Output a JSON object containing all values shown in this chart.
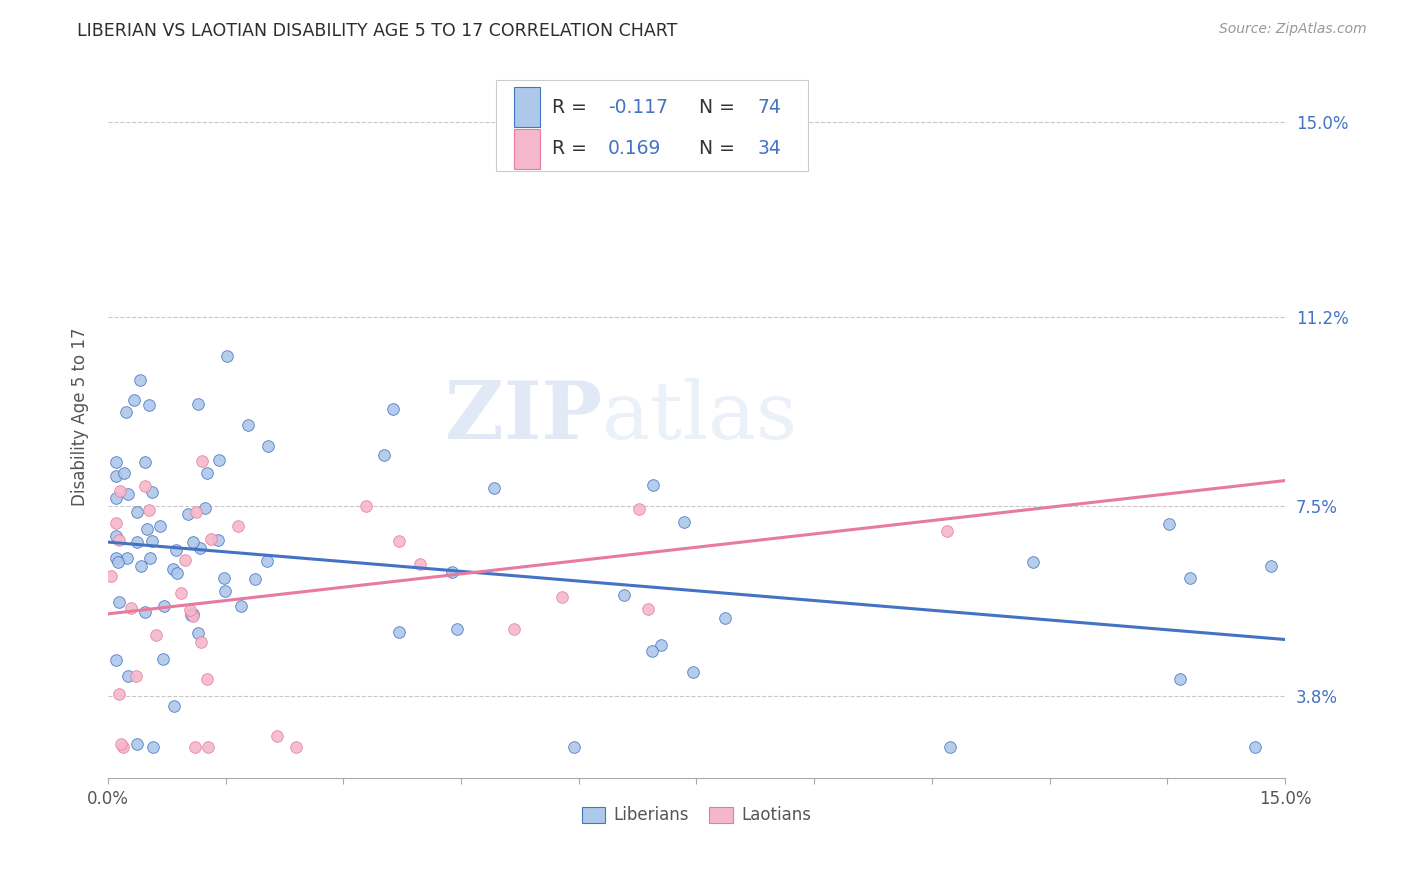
{
  "title": "LIBERIAN VS LAOTIAN DISABILITY AGE 5 TO 17 CORRELATION CHART",
  "source_text": "Source: ZipAtlas.com",
  "ylabel": "Disability Age 5 to 17",
  "xmin": 0.0,
  "xmax": 0.15,
  "ymin": 0.022,
  "ymax": 0.163,
  "ytick_labels": [
    "3.8%",
    "7.5%",
    "11.2%",
    "15.0%"
  ],
  "ytick_values": [
    0.038,
    0.075,
    0.112,
    0.15
  ],
  "watermark_zip": "ZIP",
  "watermark_atlas": "atlas",
  "liberian_color": "#adc8e8",
  "laotian_color": "#f5b8cb",
  "liberian_line_color": "#4472c4",
  "laotian_line_color": "#e87a9f",
  "R_liberian": -0.117,
  "N_liberian": 74,
  "R_laotian": 0.169,
  "N_laotian": 34,
  "legend_label_liberian": "Liberians",
  "legend_label_laotian": "Laotians",
  "background_color": "#ffffff",
  "grid_color": "#c8c8c8",
  "right_tick_color": "#4472c4",
  "lib_trend_start_y": 0.068,
  "lib_trend_end_y": 0.049,
  "lao_trend_start_y": 0.054,
  "lao_trend_end_y": 0.08
}
